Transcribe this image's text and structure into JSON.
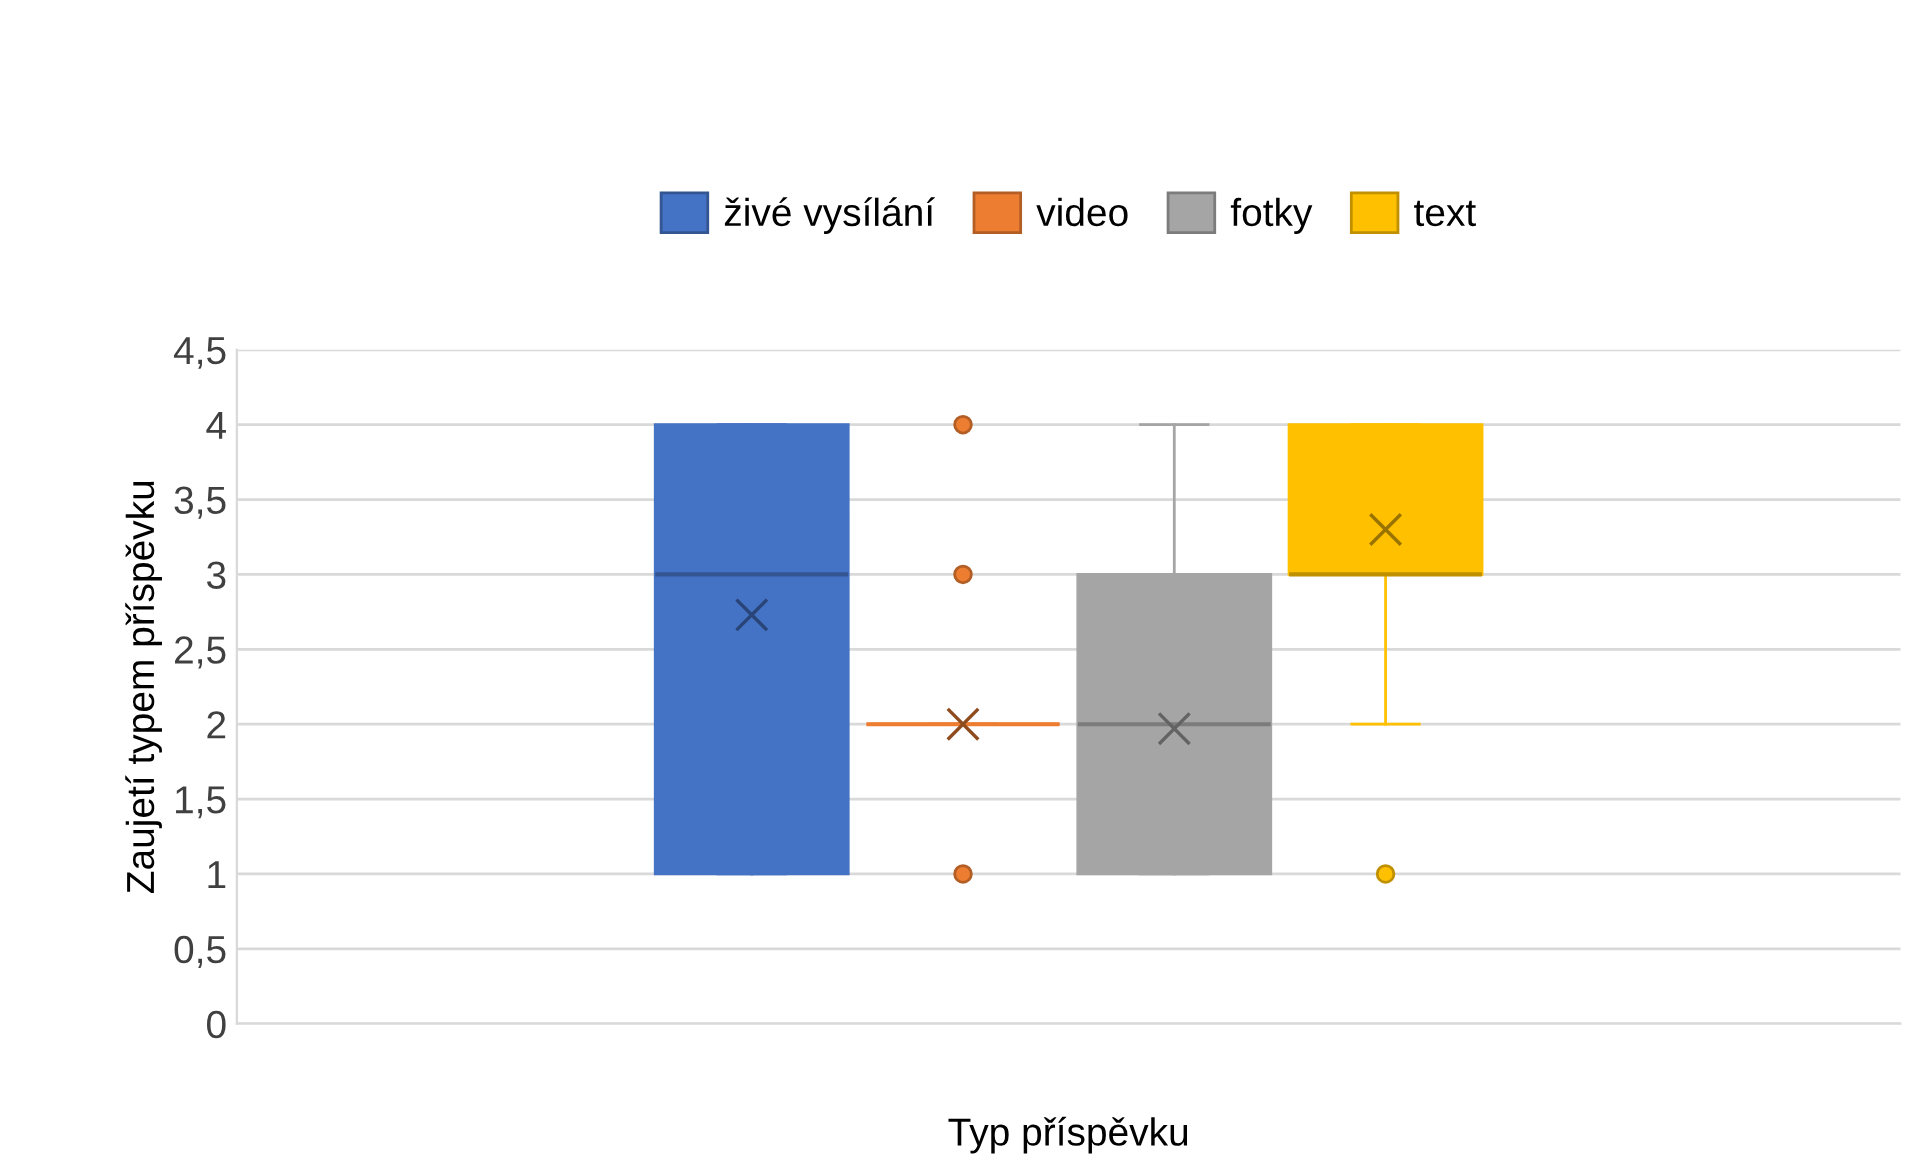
{
  "chart_data": {
    "type": "box",
    "xlabel": "Typ příspěvku",
    "ylabel": "Zaujetí typem příspěvku",
    "categories": [
      null
    ],
    "series": [
      {
        "name": "živé vysílání",
        "color": "#4472c4",
        "boxes": [
          {
            "low": 1,
            "q1": 1,
            "median": 3,
            "q3": 4,
            "high": 4,
            "mean": 2.73
          }
        ]
      },
      {
        "name": "video",
        "color": "#ed7d31",
        "boxes": [
          {
            "low": 2,
            "q1": 2,
            "median": 2,
            "q3": 2,
            "high": 2,
            "mean": 2.0,
            "outliers": [
              1,
              3,
              4
            ]
          }
        ]
      },
      {
        "name": "fotky",
        "color": "#a5a5a5",
        "boxes": [
          {
            "low": 1,
            "q1": 1,
            "median": 2,
            "q3": 3,
            "high": 4,
            "mean": 1.97
          }
        ]
      },
      {
        "name": "text",
        "color": "#ffc000",
        "boxes": [
          {
            "low": 2,
            "q1": 3,
            "median": 3,
            "q3": 4,
            "high": 4,
            "mean": 3.3,
            "outliers": [
              1
            ]
          }
        ]
      }
    ],
    "ylim": [
      0,
      4.5
    ],
    "yticks": [
      0,
      {
        "value": 0.5,
        "label": "0,5"
      },
      1,
      {
        "value": 1.5,
        "label": "1,5"
      },
      2,
      {
        "value": 2.5,
        "label": "2,5"
      },
      3,
      {
        "value": 3.5,
        "label": "3,5"
      },
      4,
      {
        "value": 4.5,
        "label": "4,5"
      }
    ],
    "grid": "y",
    "legend": "top"
  }
}
